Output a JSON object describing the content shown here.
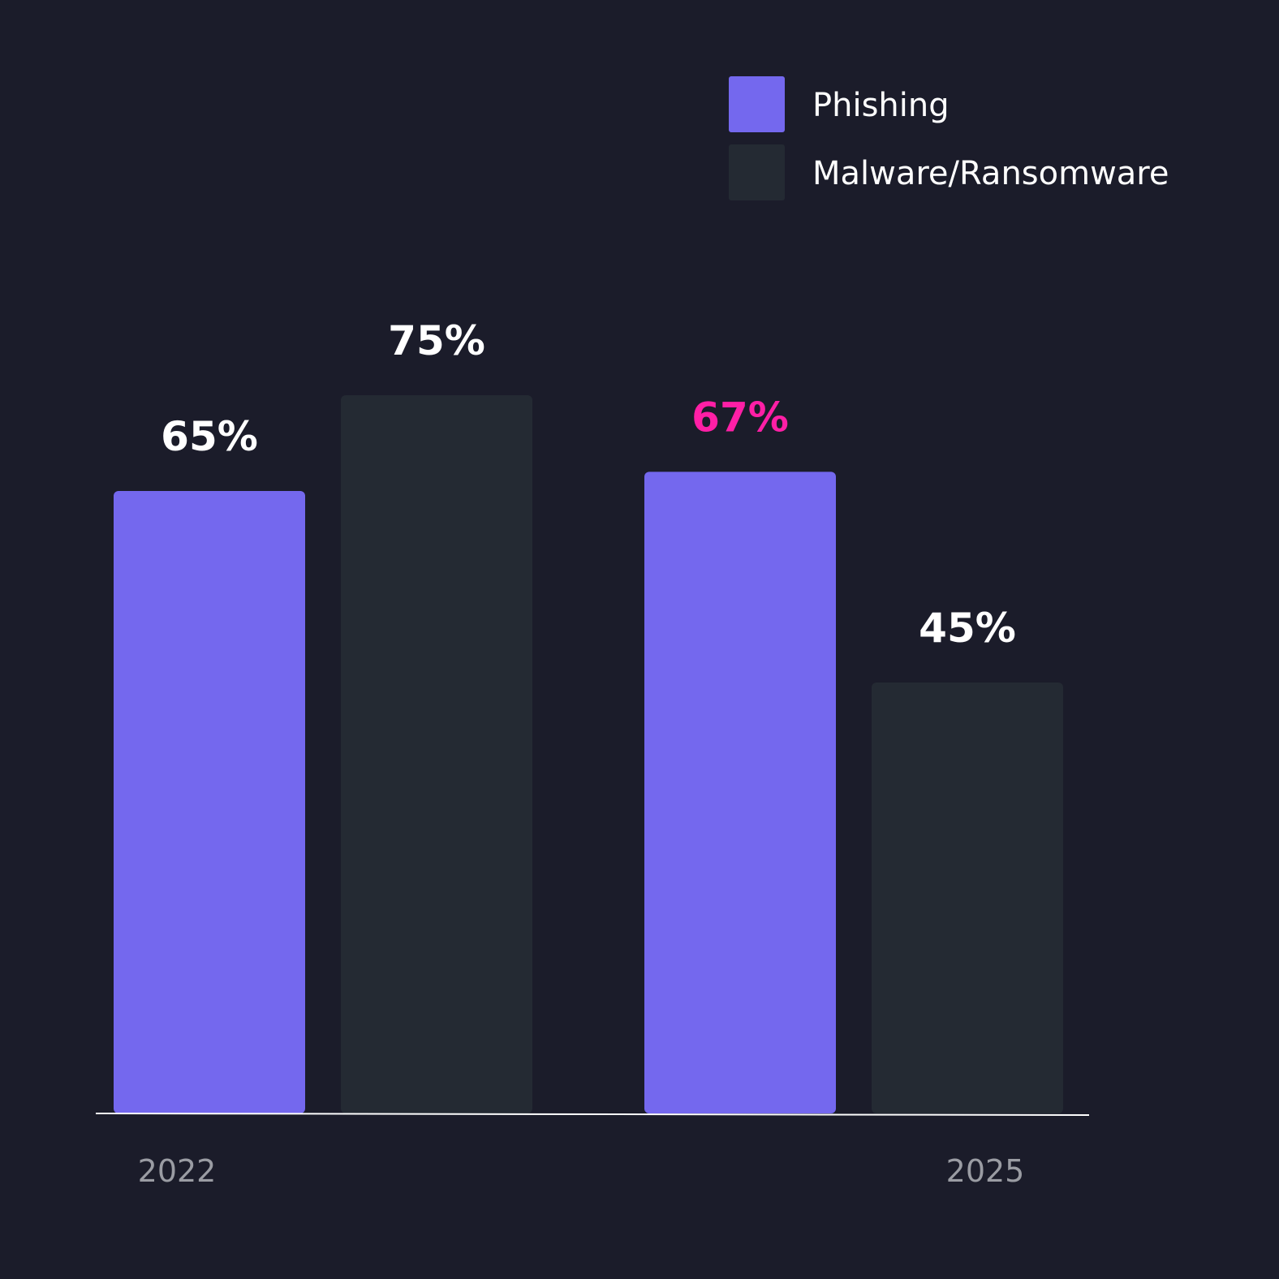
{
  "chart_data": {
    "type": "bar",
    "categories": [
      "2022",
      "2025"
    ],
    "series": [
      {
        "name": "Phishing",
        "color": "#7468ee",
        "values": [
          65,
          67
        ],
        "value_labels": [
          "65%",
          "67%"
        ],
        "label_colors": [
          "#ffffff",
          "#ff1fa6"
        ]
      },
      {
        "name": "Malware/Ransomware",
        "color": "#242a33",
        "values": [
          75,
          45
        ],
        "value_labels": [
          "75%",
          "45%"
        ],
        "label_colors": [
          "#ffffff",
          "#ffffff"
        ]
      }
    ]
  }
}
